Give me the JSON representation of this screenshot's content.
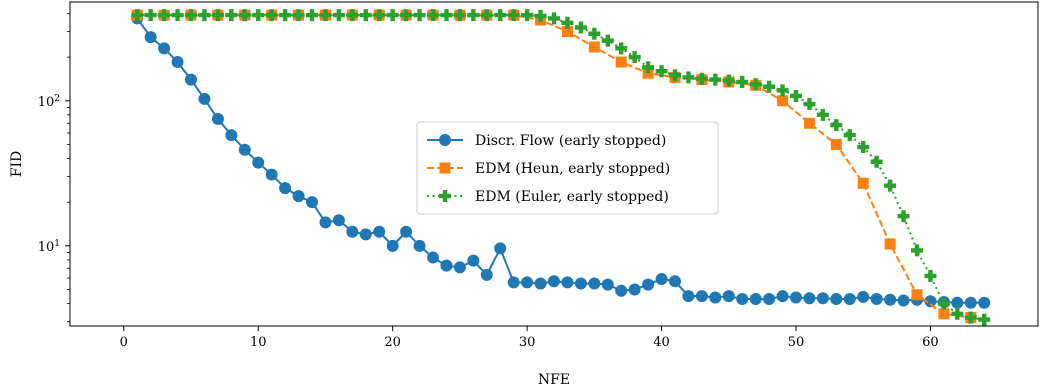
{
  "chart_data": {
    "type": "line",
    "title": "",
    "xlabel": "NFE",
    "ylabel": "FID",
    "xlim": [
      -4,
      68
    ],
    "ylim": [
      2.8,
      480
    ],
    "yscale": "log",
    "x_ticks": [
      0,
      10,
      20,
      30,
      40,
      50,
      60
    ],
    "y_ticks": [
      {
        "value": 10,
        "base": "10",
        "exp": "1"
      },
      {
        "value": 100,
        "base": "10",
        "exp": "2"
      }
    ],
    "grid": false,
    "legend_position": "center",
    "series": [
      {
        "name": "Discr. Flow (early stopped)",
        "color": "#1f77b4",
        "marker": "circle",
        "linestyle": "solid",
        "x": [
          1,
          2,
          3,
          4,
          5,
          6,
          7,
          8,
          9,
          10,
          11,
          12,
          13,
          14,
          15,
          16,
          17,
          18,
          19,
          20,
          21,
          22,
          23,
          24,
          25,
          26,
          27,
          28,
          29,
          30,
          31,
          32,
          33,
          34,
          35,
          36,
          37,
          38,
          39,
          40,
          41,
          42,
          43,
          44,
          45,
          46,
          47,
          48,
          49,
          50,
          51,
          52,
          53,
          54,
          55,
          56,
          57,
          58,
          59,
          60,
          61,
          62,
          63,
          64
        ],
        "y": [
          370,
          275,
          230,
          185,
          140,
          103,
          75,
          58,
          46,
          37.5,
          31,
          25,
          22,
          20,
          14.5,
          15,
          12.5,
          12,
          12.5,
          10,
          12.5,
          10,
          8.3,
          7.3,
          7.1,
          7.9,
          6.3,
          9.6,
          5.6,
          5.6,
          5.5,
          5.7,
          5.6,
          5.5,
          5.5,
          5.4,
          4.9,
          5,
          5.4,
          5.9,
          5.7,
          4.5,
          4.5,
          4.4,
          4.5,
          4.3,
          4.3,
          4.3,
          4.5,
          4.4,
          4.35,
          4.35,
          4.3,
          4.3,
          4.45,
          4.3,
          4.25,
          4.2,
          4.25,
          4.15,
          4.1,
          4.05,
          4.05,
          4.05
        ]
      },
      {
        "name": "EDM (Heun, early stopped)",
        "color": "#ff7f0e",
        "marker": "square",
        "linestyle": "dashed",
        "x": [
          1,
          3,
          5,
          7,
          9,
          11,
          13,
          15,
          17,
          19,
          21,
          23,
          25,
          27,
          29,
          31,
          33,
          35,
          37,
          39,
          41,
          43,
          45,
          47,
          49,
          51,
          53,
          55,
          57,
          59,
          61,
          63
        ],
        "y": [
          390,
          390,
          390,
          390,
          390,
          390,
          390,
          390,
          390,
          390,
          390,
          390,
          390,
          390,
          390,
          360,
          300,
          235,
          185,
          155,
          145,
          140,
          135,
          128,
          100,
          70,
          50,
          27,
          10.3,
          4.6,
          3.4,
          3.2
        ]
      },
      {
        "name": "EDM (Euler, early stopped)",
        "color": "#2ca02c",
        "marker": "plus",
        "linestyle": "dotted",
        "x": [
          1,
          2,
          3,
          4,
          5,
          6,
          7,
          8,
          9,
          10,
          11,
          12,
          13,
          14,
          15,
          16,
          17,
          18,
          19,
          20,
          21,
          22,
          23,
          24,
          25,
          26,
          27,
          28,
          29,
          30,
          31,
          32,
          33,
          34,
          35,
          36,
          37,
          38,
          39,
          40,
          41,
          42,
          43,
          44,
          45,
          46,
          47,
          48,
          49,
          50,
          51,
          52,
          53,
          54,
          55,
          56,
          57,
          58,
          59,
          60,
          61,
          62,
          63,
          64
        ],
        "y": [
          390,
          390,
          390,
          390,
          390,
          390,
          390,
          390,
          390,
          390,
          390,
          390,
          390,
          390,
          390,
          390,
          390,
          390,
          390,
          390,
          390,
          390,
          390,
          390,
          390,
          390,
          390,
          390,
          390,
          390,
          385,
          370,
          345,
          320,
          290,
          260,
          230,
          200,
          170,
          160,
          150,
          145,
          142,
          140,
          138,
          135,
          130,
          125,
          118,
          108,
          95,
          80,
          68,
          58,
          48,
          38,
          26,
          16,
          9.3,
          6.2,
          4,
          3.4,
          3.2,
          3.1
        ]
      }
    ]
  }
}
